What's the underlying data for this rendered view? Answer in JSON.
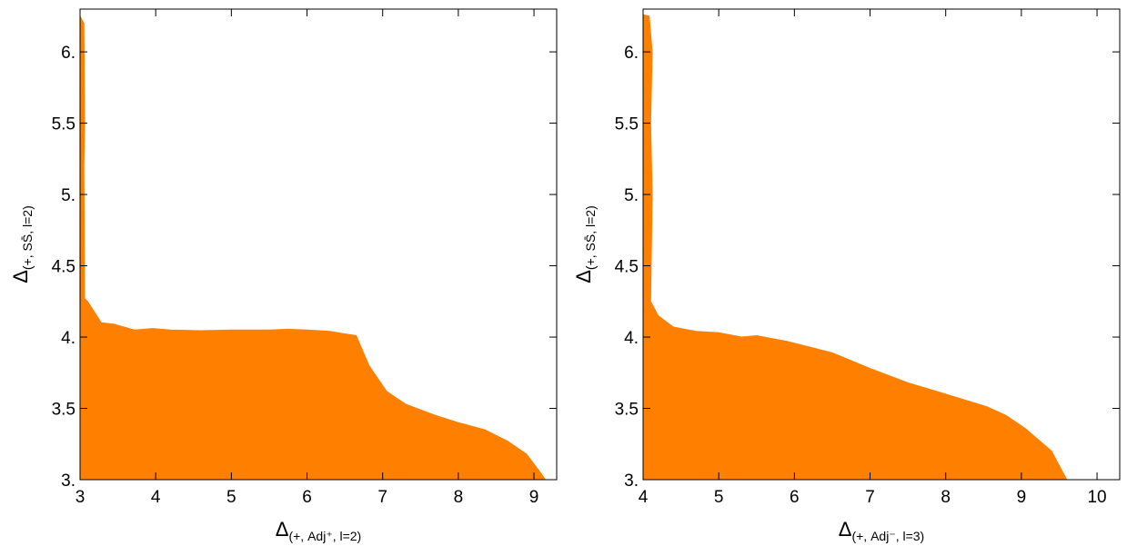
{
  "chart_data": [
    {
      "type": "area",
      "xlim": [
        3,
        9.3
      ],
      "ylim": [
        3,
        6.3
      ],
      "x_ticks": [
        3,
        4,
        5,
        6,
        7,
        8,
        9
      ],
      "x_tick_labels": [
        "3",
        "4",
        "5",
        "6",
        "7",
        "8",
        "9"
      ],
      "y_ticks": [
        3,
        3.5,
        4,
        4.5,
        5,
        5.5,
        6
      ],
      "y_tick_labels": [
        "3.",
        "3.5",
        "4.",
        "4.5",
        "5.",
        "5.5",
        "6."
      ],
      "xlabel": {
        "main": "Δ",
        "sub": "(+, Adj⁺, l=2)"
      },
      "ylabel": {
        "main": "Δ",
        "sub": "(+, SS̄, l=2)"
      },
      "grid": false,
      "fill_color": "#ff8000",
      "region": [
        [
          3.0,
          3.0
        ],
        [
          3.0,
          6.25
        ],
        [
          3.05,
          6.2
        ],
        [
          3.06,
          5.5
        ],
        [
          3.05,
          5.2
        ],
        [
          3.06,
          4.27
        ],
        [
          3.1,
          4.25
        ],
        [
          3.28,
          4.1
        ],
        [
          3.45,
          4.09
        ],
        [
          3.72,
          4.05
        ],
        [
          3.96,
          4.06
        ],
        [
          4.2,
          4.05
        ],
        [
          4.6,
          4.045
        ],
        [
          5.0,
          4.05
        ],
        [
          5.5,
          4.05
        ],
        [
          5.75,
          4.055
        ],
        [
          6.0,
          4.05
        ],
        [
          6.3,
          4.04
        ],
        [
          6.65,
          4.01
        ],
        [
          6.82,
          3.8
        ],
        [
          7.05,
          3.62
        ],
        [
          7.3,
          3.53
        ],
        [
          7.7,
          3.45
        ],
        [
          8.0,
          3.4
        ],
        [
          8.35,
          3.35
        ],
        [
          8.65,
          3.27
        ],
        [
          8.9,
          3.18
        ],
        [
          9.07,
          3.06
        ],
        [
          9.15,
          3.0
        ]
      ]
    },
    {
      "type": "area",
      "xlim": [
        4,
        10.3
      ],
      "ylim": [
        3,
        6.3
      ],
      "x_ticks": [
        4,
        5,
        6,
        7,
        8,
        9,
        10
      ],
      "x_tick_labels": [
        "4",
        "5",
        "6",
        "7",
        "8",
        "9",
        "10"
      ],
      "y_ticks": [
        3,
        3.5,
        4,
        4.5,
        5,
        5.5,
        6
      ],
      "y_tick_labels": [
        "3.",
        "3.5",
        "4.",
        "4.5",
        "5.",
        "5.5",
        "6."
      ],
      "xlabel": {
        "main": "Δ",
        "sub": "(+, Adj⁻, l=3)"
      },
      "ylabel": {
        "main": "Δ",
        "sub": "(+, SS̄, l=2)"
      },
      "grid": false,
      "fill_color": "#ff8000",
      "region": [
        [
          4.0,
          3.0
        ],
        [
          4.0,
          6.26
        ],
        [
          4.08,
          6.25
        ],
        [
          4.12,
          6.0
        ],
        [
          4.1,
          5.5
        ],
        [
          4.12,
          5.0
        ],
        [
          4.1,
          4.25
        ],
        [
          4.2,
          4.15
        ],
        [
          4.4,
          4.07
        ],
        [
          4.7,
          4.04
        ],
        [
          5.0,
          4.03
        ],
        [
          5.3,
          4.0
        ],
        [
          5.5,
          4.01
        ],
        [
          5.9,
          3.97
        ],
        [
          6.5,
          3.89
        ],
        [
          7.0,
          3.78
        ],
        [
          7.5,
          3.68
        ],
        [
          8.0,
          3.6
        ],
        [
          8.55,
          3.51
        ],
        [
          8.8,
          3.45
        ],
        [
          9.05,
          3.36
        ],
        [
          9.4,
          3.2
        ],
        [
          9.55,
          3.05
        ],
        [
          9.6,
          3.0
        ]
      ]
    }
  ]
}
